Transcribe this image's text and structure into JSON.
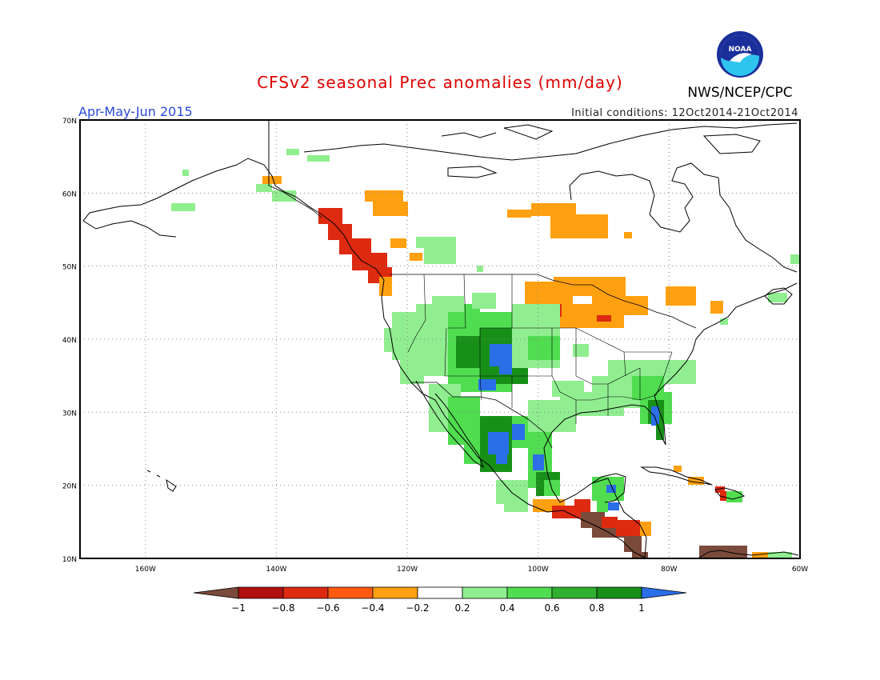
{
  "header": {
    "title": "CFSv2 seasonal Prec anomalies (mm/day)",
    "season": "Apr-May-Jun 2015",
    "initial_conditions": "Initial conditions: 12Oct2014-21Oct2014",
    "agency": "NWS/NCEP/CPC",
    "logo_text": "NOAA"
  },
  "map": {
    "lat_labels": [
      "70N",
      "60N",
      "50N",
      "40N",
      "30N",
      "20N",
      "10N"
    ],
    "lon_labels": [
      "160W",
      "140W",
      "120W",
      "100W",
      "80W",
      "60W"
    ],
    "extent": {
      "lon_min": -170,
      "lon_max": -60,
      "lat_min": 10,
      "lat_max": 70
    },
    "gridlines": "dotted"
  },
  "legend": {
    "labels": [
      "-1",
      "-0.8",
      "-0.6",
      "-0.4",
      "-0.2",
      "0.2",
      "0.4",
      "0.6",
      "0.8",
      "1"
    ],
    "colors": [
      "#7a4a3a",
      "#b01010",
      "#dd2a10",
      "#ff5a10",
      "#ffa010",
      "#ffffff",
      "#90ee90",
      "#50dd50",
      "#30b030",
      "#189018",
      "#2a6ee8"
    ]
  },
  "colors": {
    "title": "#dd0000",
    "season": "#2a4ad8",
    "wet_heavy": "#2a6ee8",
    "wet": "#189018",
    "dry": "#ffa010",
    "very_dry": "#dd2a10",
    "extreme_dry": "#7a4a3a"
  }
}
